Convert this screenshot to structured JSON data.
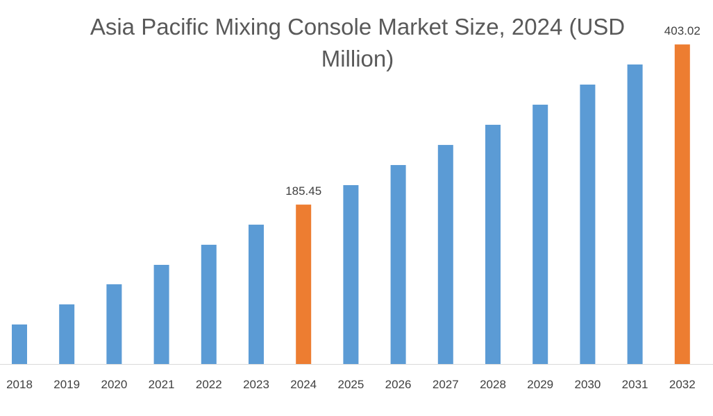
{
  "chart_data": {
    "type": "bar",
    "title": "Asia Pacific Mixing Console Market Size, 2024 (USD Million)",
    "xlabel": "",
    "ylabel": "",
    "categories": [
      "2018",
      "2019",
      "2020",
      "2021",
      "2022",
      "2023",
      "2024",
      "2025",
      "2026",
      "2027",
      "2028",
      "2029",
      "2030",
      "2031",
      "2032"
    ],
    "values": [
      22.6,
      49.9,
      77.2,
      103.6,
      130.9,
      158.2,
      185.45,
      211.9,
      239.2,
      266.5,
      293.9,
      321.2,
      348.5,
      375.8,
      403.02
    ],
    "highlight": [
      "2024",
      "2032"
    ],
    "data_labels": {
      "2024": "185.45",
      "2032": "403.02"
    },
    "colors": {
      "default": "#5B9BD5",
      "highlight": "#ED7D31",
      "axis": "#D9D9D9"
    },
    "grid": false,
    "legend": "none"
  }
}
